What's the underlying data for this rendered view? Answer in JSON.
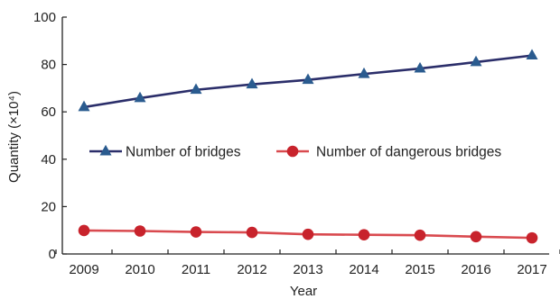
{
  "chart_data": {
    "type": "line",
    "title": "",
    "xlabel": "Year",
    "ylabel": "Quantity (×10⁴)",
    "categories": [
      "2009",
      "2010",
      "2011",
      "2012",
      "2013",
      "2014",
      "2015",
      "2016",
      "2017"
    ],
    "ylim": [
      0,
      100
    ],
    "yticks": [
      "0",
      "20",
      "40",
      "60",
      "80",
      "100"
    ],
    "grid": false,
    "legend_position": "center",
    "series": [
      {
        "name": "Number of bridges",
        "values": [
          62.0,
          65.8,
          69.3,
          71.6,
          73.5,
          76.0,
          78.3,
          81.0,
          83.8
        ],
        "color": "#2b2e6a",
        "marker": "triangle",
        "marker_color": "#2a5b8f"
      },
      {
        "name": "Number of dangerous bridges",
        "values": [
          9.9,
          9.7,
          9.3,
          9.1,
          8.3,
          8.1,
          7.9,
          7.3,
          6.8
        ],
        "color": "#d94a4f",
        "marker": "circle",
        "marker_color": "#c8232c"
      }
    ]
  }
}
